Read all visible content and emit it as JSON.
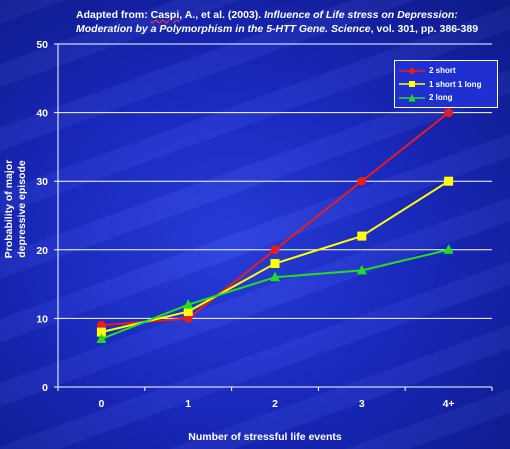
{
  "caption": {
    "prefix": "Adapted from:  ",
    "author": "Caspi",
    "author_rest": ", A., et al. (2003).  ",
    "title_italic": "Influence of Life stress on Depression: Moderation by a Polymorphism in the 5-HTT Gene.  Science",
    "suffix": ", vol. 301, pp. 386-389"
  },
  "chart_data": {
    "type": "line",
    "categories": [
      "0",
      "1",
      "2",
      "3",
      "4+"
    ],
    "series": [
      {
        "name": "2 short",
        "values": [
          9,
          10,
          20,
          30,
          40
        ],
        "color": "#e81c1c",
        "marker": "circle"
      },
      {
        "name": "1 short 1 long",
        "values": [
          8,
          11,
          18,
          22,
          30
        ],
        "color": "#ffff00",
        "marker": "square"
      },
      {
        "name": "2 long",
        "values": [
          7,
          12,
          16,
          17,
          20
        ],
        "color": "#22dd22",
        "marker": "triangle"
      }
    ],
    "ylim": [
      0,
      50
    ],
    "yticks": [
      "0",
      "10",
      "20",
      "30",
      "40",
      "50"
    ],
    "ylabel": "Probability of major depressive episode",
    "xlabel": "Number of stressful life events",
    "grid": true,
    "legend_position": "top-right"
  }
}
